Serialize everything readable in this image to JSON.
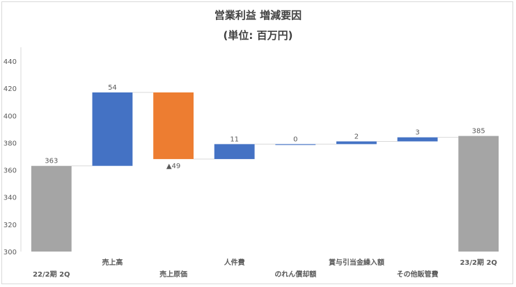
{
  "chart_data": {
    "type": "waterfall",
    "title": "営業利益 増減要因",
    "subtitle": "(単位: 百万円)",
    "ylim": [
      300,
      440
    ],
    "yticks": [
      300,
      320,
      340,
      360,
      380,
      400,
      420,
      440
    ],
    "grid": false,
    "items": [
      {
        "category": "22/2期 2Q",
        "kind": "total",
        "value": 363,
        "label": "363"
      },
      {
        "category": "売上高",
        "kind": "increase",
        "value": 54,
        "label": "54"
      },
      {
        "category": "売上原価",
        "kind": "decrease",
        "value": -49,
        "label": "▲49"
      },
      {
        "category": "人件費",
        "kind": "increase",
        "value": 11,
        "label": "11"
      },
      {
        "category": "のれん償却額",
        "kind": "increase",
        "value": 0,
        "label": "0"
      },
      {
        "category": "賞与引当金繰入額",
        "kind": "increase",
        "value": 2,
        "label": "2"
      },
      {
        "category": "その他販管費",
        "kind": "increase",
        "value": 3,
        "label": "3"
      },
      {
        "category": "23/2期 2Q",
        "kind": "total",
        "value": 385,
        "label": "385"
      }
    ],
    "colors": {
      "total": "#a5a5a5",
      "increase": "#4472c4",
      "decrease": "#ed7d31",
      "axis_text": "#595959",
      "connector": "#d9d9d9"
    }
  }
}
